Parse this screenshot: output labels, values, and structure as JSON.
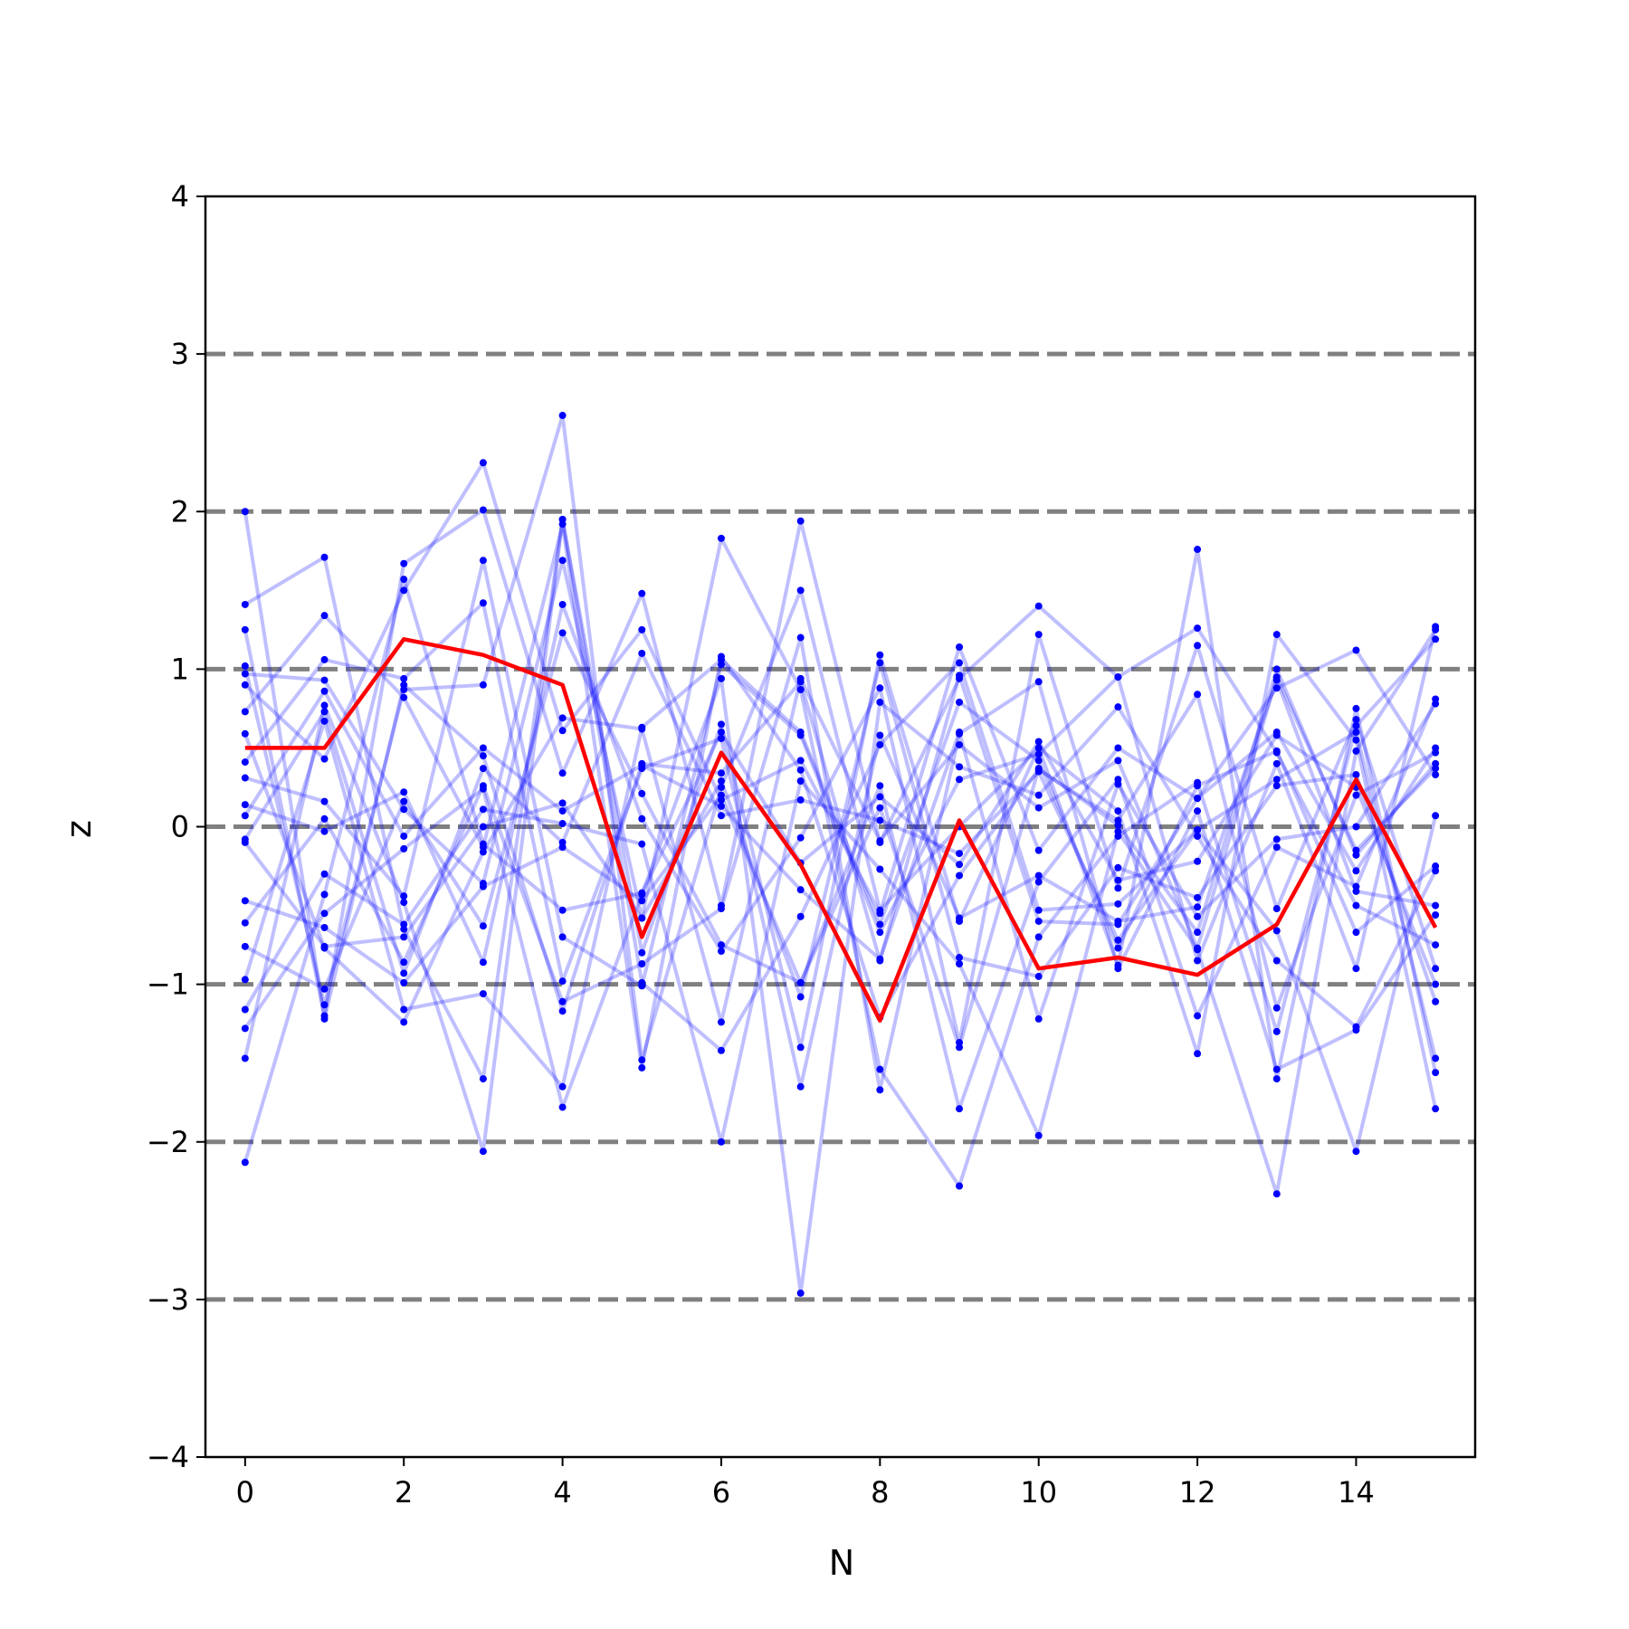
{
  "chart_data": {
    "type": "line",
    "title": "",
    "xlabel": "N",
    "ylabel": "z",
    "xlim": [
      -0.5,
      15.5
    ],
    "ylim": [
      -4,
      4
    ],
    "x": [
      0,
      1,
      2,
      3,
      4,
      5,
      6,
      7,
      8,
      9,
      10,
      11,
      12,
      13,
      14,
      15
    ],
    "x_ticks": [
      0,
      2,
      4,
      6,
      8,
      10,
      12,
      14
    ],
    "x_tick_labels": [
      "0",
      "2",
      "4",
      "6",
      "8",
      "10",
      "12",
      "14"
    ],
    "y_ticks": [
      -4,
      -3,
      -2,
      -1,
      0,
      1,
      2,
      3,
      4
    ],
    "y_tick_labels": [
      "−4",
      "−3",
      "−2",
      "−1",
      "0",
      "1",
      "2",
      "3",
      "4"
    ],
    "reference_lines": [
      -3,
      -2,
      -1,
      0,
      1,
      2,
      3
    ],
    "grid": false,
    "legend": "none",
    "colors": {
      "realizations": "#0000ff",
      "highlight": "#ff0000",
      "reference": "#808080",
      "axes": "#000000"
    },
    "highlight_series": {
      "values": [
        0.5,
        0.5,
        1.19,
        1.09,
        0.9,
        -0.7,
        0.47,
        -0.24,
        -1.23,
        0.04,
        -0.9,
        -0.83,
        -0.94,
        -0.62,
        0.3,
        -0.64
      ]
    },
    "series": [
      {
        "values": [
          2.0,
          -1.22,
          0.9,
          0.45,
          -1.17,
          0.4,
          0.34,
          0.92,
          -0.85,
          0.96,
          -0.6,
          -0.62,
          0.18,
          0.6,
          -0.28,
          0.5
        ]
      },
      {
        "values": [
          1.41,
          1.71,
          -0.65,
          -1.6,
          1.95,
          -0.8,
          0.65,
          -1.4,
          1.09,
          -0.6,
          0.5,
          -0.88,
          1.76,
          -1.6,
          0.75,
          -1.56
        ]
      },
      {
        "values": [
          1.25,
          -1.2,
          1.67,
          2.01,
          0.34,
          1.48,
          -0.5,
          1.94,
          -0.1,
          0.94,
          1.4,
          0.95,
          -0.85,
          0.4,
          -0.9,
          1.27
        ]
      },
      {
        "values": [
          1.02,
          -1.13,
          0.87,
          0.9,
          2.61,
          -1.48,
          0.25,
          1.5,
          -0.53,
          0.0,
          0.5,
          0.1,
          -1.44,
          1.22,
          0.55,
          -1.79
        ]
      },
      {
        "values": [
          0.97,
          0.93,
          0.11,
          -0.36,
          1.69,
          -0.58,
          1.83,
          0.87,
          -1.54,
          -2.28,
          -0.7,
          -0.06,
          0.28,
          -1.3,
          0.64,
          1.19
        ]
      },
      {
        "values": [
          0.9,
          0.43,
          1.5,
          2.31,
          0.61,
          1.25,
          0.17,
          0.42,
          -0.55,
          1.14,
          -0.15,
          0.5,
          0.18,
          0.88,
          1.12,
          0.33
        ]
      },
      {
        "values": [
          0.73,
          1.34,
          0.82,
          -0.13,
          1.92,
          -1.53,
          1.08,
          0.36,
          -1.21,
          -0.31,
          0.36,
          0.04,
          0.84,
          -1.15,
          0.2,
          0.47
        ]
      },
      {
        "values": [
          0.59,
          -0.77,
          -1.24,
          -0.16,
          0.69,
          0.62,
          -1.24,
          0.94,
          -0.09,
          0.52,
          0.12,
          0.42,
          -0.77,
          0.95,
          -0.15,
          0.37
        ]
      },
      {
        "values": [
          0.41,
          1.06,
          0.94,
          1.42,
          -0.98,
          0.37,
          0.56,
          -1.65,
          0.58,
          -0.58,
          -0.31,
          -0.6,
          -0.51,
          0.93,
          -0.41,
          -0.5
        ]
      },
      {
        "values": [
          0.31,
          0.16,
          -0.44,
          1.69,
          -0.7,
          -1.01,
          1.03,
          0.58,
          -0.67,
          0.3,
          0.46,
          0.95,
          1.26,
          0.47,
          -0.5,
          -0.75
        ]
      },
      {
        "values": [
          0.14,
          -0.03,
          0.22,
          -0.86,
          1.41,
          0.05,
          -0.79,
          -0.07,
          0.88,
          -1.37,
          1.22,
          -0.39,
          1.15,
          -0.52,
          0.68,
          -0.9
        ]
      },
      {
        "values": [
          0.07,
          0.86,
          -0.06,
          0.5,
          0.1,
          0.39,
          0.13,
          -0.4,
          -0.84,
          0.6,
          -1.22,
          0.27,
          -0.57,
          -0.08,
          0.0,
          0.78
        ]
      },
      {
        "values": [
          -0.08,
          0.73,
          -0.93,
          0.37,
          -0.1,
          1.1,
          0.07,
          0.17,
          0.04,
          -0.17,
          0.35,
          -0.72,
          -0.02,
          -0.66,
          -2.06,
          0.07
        ]
      },
      {
        "values": [
          -0.1,
          -0.76,
          -0.7,
          0.0,
          0.15,
          -0.58,
          0.29,
          -1.08,
          1.04,
          -0.83,
          -0.95,
          -0.26,
          -0.45,
          0.26,
          0.33,
          -1.11
        ]
      },
      {
        "values": [
          -0.47,
          -0.64,
          -0.99,
          -0.38,
          -0.13,
          -0.47,
          0.2,
          -0.99,
          0.26,
          -1.79,
          -0.35,
          0.3,
          -1.2,
          -0.13,
          -0.38,
          0.81
        ]
      },
      {
        "values": [
          -0.61,
          0.05,
          -0.86,
          0.26,
          -1.11,
          -0.87,
          -0.52,
          1.2,
          -1.67,
          0.59,
          0.92,
          -0.9,
          0.1,
          -1.54,
          -1.29,
          -0.56
        ]
      },
      {
        "values": [
          -0.76,
          -1.03,
          0.16,
          -0.63,
          1.23,
          0.21,
          -0.75,
          -0.99,
          0.12,
          -1.4,
          0.37,
          0.01,
          -0.67,
          1.0,
          -0.18,
          0.4
        ]
      },
      {
        "values": [
          -0.97,
          0.67,
          -1.16,
          -1.06,
          -1.65,
          0.63,
          1.06,
          0.6,
          -0.62,
          0.79,
          0.42,
          -0.77,
          0.26,
          0.48,
          -0.67,
          -0.25
        ]
      },
      {
        "values": [
          -1.16,
          -0.3,
          -0.62,
          0.11,
          0.02,
          -0.11,
          -2.0,
          0.29,
          -0.27,
          -0.87,
          -1.96,
          -0.03,
          -0.78,
          -2.33,
          0.48,
          1.25
        ]
      },
      {
        "values": [
          -1.28,
          -0.55,
          -0.14,
          0.24,
          -1.78,
          -0.43,
          0.94,
          -2.96,
          0.79,
          0.38,
          0.2,
          0.76,
          -0.06,
          -0.85,
          -1.27,
          -0.28
        ]
      },
      {
        "values": [
          -1.47,
          0.77,
          -0.48,
          -2.06,
          1.95,
          -0.99,
          -1.42,
          -0.57,
          0.52,
          1.04,
          -0.53,
          -0.49,
          -0.02,
          0.3,
          0.6,
          -1.47
        ]
      },
      {
        "values": [
          -2.13,
          -0.43,
          1.57,
          -0.11,
          -0.53,
          -0.42,
          0.6,
          -0.23,
          0.19,
          -0.24,
          0.54,
          -0.34,
          -0.22,
          0.58,
          0.25,
          -1.0
        ]
      }
    ]
  }
}
